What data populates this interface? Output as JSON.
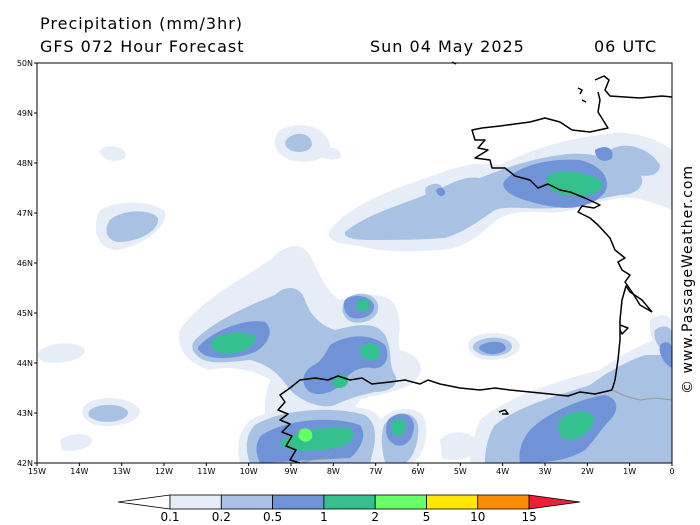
{
  "header": {
    "title": "Precipitation (mm/3hr)",
    "model": "GFS 072 Hour Forecast",
    "date": "Sun 04 May 2025",
    "time": "06 UTC"
  },
  "credit": "© www.PassageWeather.com",
  "axes": {
    "lat_labels": [
      "50N",
      "49N",
      "48N",
      "47N",
      "46N",
      "45N",
      "44N",
      "43N",
      "42N"
    ],
    "lon_labels": [
      "15W",
      "14W",
      "13W",
      "12W",
      "11W",
      "10W",
      "9W",
      "8W",
      "7W",
      "6W",
      "5W",
      "4W",
      "3W",
      "2W",
      "1W",
      "0"
    ]
  },
  "legend": {
    "labels": [
      "0.1",
      "0.2",
      "0.5",
      "1",
      "2",
      "5",
      "10",
      "15"
    ],
    "colors": [
      "#ffffff",
      "#e6edf7",
      "#a9c2e3",
      "#6f93d6",
      "#33c08e",
      "#66ff66",
      "#ffe600",
      "#ff8c00",
      "#e8213a"
    ]
  },
  "colors": {
    "light": "#e6edf7",
    "mid": "#a9c2e3",
    "dark": "#6f93d6",
    "green": "#33c08e",
    "brightgreen": "#66ff66"
  }
}
